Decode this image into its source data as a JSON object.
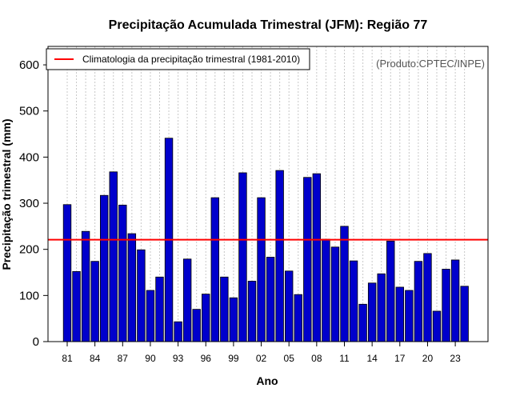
{
  "chart_data": {
    "type": "bar",
    "title": "Precipitação Acumulada Trimestral (JFM): Região 77",
    "xlabel": "Ano",
    "ylabel": "Precipitação trimestral (mm)",
    "ylim": [
      0,
      640
    ],
    "yticks": [
      0,
      100,
      200,
      300,
      400,
      500,
      600
    ],
    "years": [
      1981,
      1982,
      1983,
      1984,
      1985,
      1986,
      1987,
      1988,
      1989,
      1990,
      1991,
      1992,
      1993,
      1994,
      1995,
      1996,
      1997,
      1998,
      1999,
      2000,
      2001,
      2002,
      2003,
      2004,
      2005,
      2006,
      2007,
      2008,
      2009,
      2010,
      2011,
      2012,
      2013,
      2014,
      2015,
      2016,
      2017,
      2018,
      2019,
      2020,
      2021,
      2022,
      2023,
      2024
    ],
    "values": [
      297,
      152,
      239,
      174,
      317,
      368,
      296,
      234,
      199,
      111,
      140,
      441,
      43,
      179,
      70,
      103,
      312,
      140,
      95,
      366,
      131,
      312,
      183,
      371,
      153,
      102,
      356,
      364,
      222,
      205,
      250,
      175,
      81,
      127,
      147,
      218,
      118,
      111,
      174,
      191,
      66,
      157,
      177,
      120
    ],
    "xticks": [
      {
        "year": 1981,
        "label": "81"
      },
      {
        "year": 1984,
        "label": "84"
      },
      {
        "year": 1987,
        "label": "87"
      },
      {
        "year": 1990,
        "label": "90"
      },
      {
        "year": 1993,
        "label": "93"
      },
      {
        "year": 1996,
        "label": "96"
      },
      {
        "year": 1999,
        "label": "99"
      },
      {
        "year": 2002,
        "label": "02"
      },
      {
        "year": 2005,
        "label": "05"
      },
      {
        "year": 2008,
        "label": "08"
      },
      {
        "year": 2011,
        "label": "11"
      },
      {
        "year": 2014,
        "label": "14"
      },
      {
        "year": 2017,
        "label": "17"
      },
      {
        "year": 2020,
        "label": "20"
      },
      {
        "year": 2023,
        "label": "23"
      }
    ],
    "climatology": 221,
    "legend_label": "Climatologia da precipitação trimestral (1981-2010)",
    "legend_position": "top-left",
    "credit": "(Produto:CPTEC/INPE)",
    "grid": "vertical dotted",
    "colors": {
      "bar_fill": "#0000cc",
      "bar_stroke": "#000000",
      "climatology": "#ff0000",
      "grid": "#c8c8c8"
    }
  }
}
